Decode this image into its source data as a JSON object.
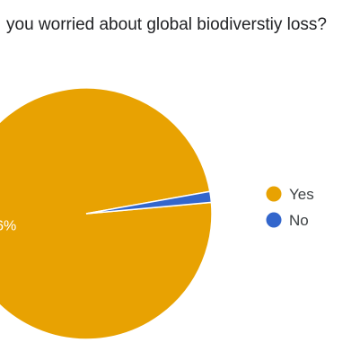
{
  "chart_data": {
    "type": "pie",
    "title": "you worried about global biodiverstiy loss?",
    "categories": [
      "Yes",
      "No"
    ],
    "values": [
      98.6,
      1.4
    ],
    "colors": [
      "#e8a202",
      "#3366cc"
    ],
    "slice_labels": [
      ".6%",
      ""
    ],
    "legend_position": "right"
  }
}
